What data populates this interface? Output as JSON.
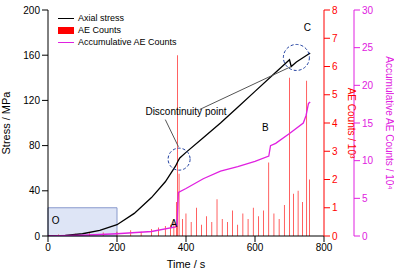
{
  "chart_data": {
    "type": "line",
    "xlabel": "Time / s",
    "ylabel": "Stress / MPa",
    "y2label": "AE Counts / 10³",
    "y3label": "Accumulative AE Counts / 10⁴",
    "xlim": [
      0,
      800
    ],
    "xticks": [
      0,
      200,
      400,
      600,
      800
    ],
    "ylim": [
      0,
      200
    ],
    "yticks": [
      0,
      40,
      80,
      120,
      160,
      200
    ],
    "y2lim": [
      0,
      8
    ],
    "y2ticks": [
      0,
      1,
      2,
      3,
      4,
      5,
      6,
      7,
      8
    ],
    "y3lim": [
      0,
      30
    ],
    "y3ticks": [
      0,
      5,
      10,
      15,
      20,
      25,
      30
    ],
    "legend": "upper left",
    "annotations": [
      "Discontinuity point",
      "A",
      "B",
      "C",
      "O"
    ],
    "series": [
      {
        "name": "Axial stress",
        "type": "line",
        "color": "#000000",
        "x": [
          0,
          50,
          100,
          150,
          200,
          250,
          300,
          340,
          370,
          378,
          382,
          400,
          450,
          500,
          550,
          600,
          650,
          700,
          705,
          720,
          740,
          760
        ],
        "values": [
          0,
          0.5,
          2,
          5,
          10,
          20,
          34,
          48,
          62,
          67,
          69,
          74,
          87,
          100,
          114,
          128,
          142,
          156,
          150,
          154,
          158,
          162
        ]
      },
      {
        "name": "AE Counts",
        "type": "bar",
        "axis": "y2",
        "color": "#ff0000",
        "x": [
          30,
          80,
          120,
          160,
          200,
          240,
          270,
          300,
          320,
          340,
          355,
          365,
          372,
          376,
          380,
          390,
          400,
          415,
          430,
          445,
          460,
          475,
          490,
          505,
          520,
          535,
          550,
          565,
          580,
          595,
          610,
          625,
          640,
          655,
          670,
          685,
          700,
          712,
          725,
          738,
          750,
          758
        ],
        "values": [
          0.05,
          0.08,
          0.1,
          0.12,
          0.15,
          0.2,
          0.15,
          0.25,
          0.3,
          0.35,
          0.4,
          0.5,
          1.2,
          6.4,
          2.2,
          0.6,
          0.8,
          0.5,
          1.0,
          0.4,
          0.7,
          0.5,
          1.3,
          0.6,
          0.5,
          0.9,
          0.4,
          0.8,
          0.6,
          1.0,
          0.7,
          0.9,
          2.6,
          0.8,
          0.6,
          1.1,
          5.6,
          1.5,
          1.6,
          1.2,
          5.5,
          2.0
        ]
      },
      {
        "name": "Accumulative AE Counts",
        "type": "line",
        "axis": "y3",
        "color": "#e020e0",
        "x": [
          0,
          100,
          200,
          300,
          370,
          374,
          378,
          400,
          450,
          500,
          550,
          600,
          640,
          645,
          660,
          700,
          740,
          748,
          755,
          760
        ],
        "values": [
          0,
          0.1,
          0.3,
          0.6,
          1.2,
          1.5,
          5.8,
          6.3,
          7.6,
          8.6,
          9.2,
          9.9,
          10.6,
          12.0,
          12.3,
          13.6,
          15.0,
          16.0,
          17.6,
          17.8
        ]
      }
    ]
  }
}
